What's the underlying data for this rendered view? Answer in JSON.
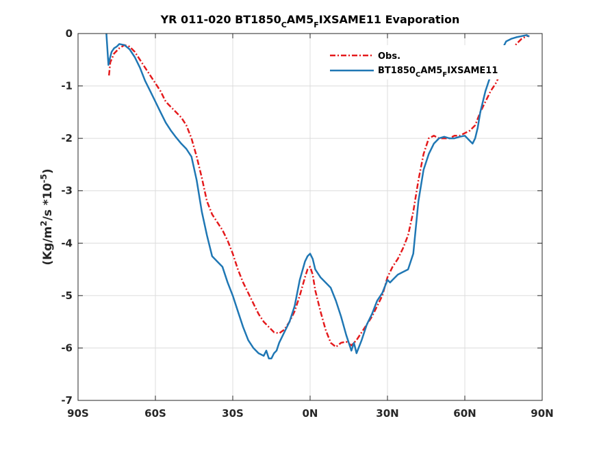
{
  "chart_data": {
    "type": "line",
    "title": {
      "pre": "YR 011-020 BT1850",
      "sub1": "C",
      "mid": "AM5",
      "sub2": "F",
      "post": "IXSAME11 Evaporation"
    },
    "xlabel": "",
    "ylabel": {
      "pre": "(Kg/m",
      "sup1": "2",
      "mid": "/s *10",
      "sup2": "-5",
      "post": ")"
    },
    "xlim": [
      -90,
      90
    ],
    "ylim": [
      -7,
      0
    ],
    "xticks": [
      -90,
      -60,
      -30,
      0,
      30,
      60,
      90
    ],
    "xtick_labels": [
      "90S",
      "60S",
      "30S",
      "0N",
      "30N",
      "60N",
      "90N"
    ],
    "yticks": [
      -7,
      -6,
      -5,
      -4,
      -3,
      -2,
      -1,
      0
    ],
    "ytick_labels": [
      "-7",
      "-6",
      "-5",
      "-4",
      "-3",
      "-2",
      "-1",
      "0"
    ],
    "grid": true,
    "legend_position": "top-right",
    "series": [
      {
        "name": "Obs.",
        "color": "#e41a1c",
        "style": "dashdot",
        "x": [
          -78,
          -77.5,
          -76,
          -74,
          -72,
          -70,
          -68,
          -66,
          -64,
          -62,
          -60,
          -58,
          -56,
          -54,
          -52,
          -50,
          -48,
          -46,
          -44,
          -42,
          -40,
          -38,
          -36,
          -34,
          -32,
          -30,
          -28,
          -26,
          -24,
          -22,
          -20,
          -18,
          -16,
          -14,
          -12,
          -10,
          -8,
          -6,
          -4,
          -2,
          -1,
          0,
          1,
          2,
          4,
          6,
          8,
          10,
          12,
          14,
          16,
          18,
          20,
          22,
          24,
          26,
          28,
          30,
          32,
          34,
          36,
          38,
          40,
          42,
          44,
          46,
          48,
          50,
          52,
          54,
          56,
          58,
          60,
          62,
          64,
          66,
          68,
          70,
          72,
          74,
          76,
          78,
          80,
          82,
          84,
          85
        ],
        "y": [
          -0.8,
          -0.55,
          -0.38,
          -0.28,
          -0.22,
          -0.25,
          -0.35,
          -0.5,
          -0.65,
          -0.8,
          -0.95,
          -1.1,
          -1.3,
          -1.4,
          -1.5,
          -1.6,
          -1.75,
          -2.0,
          -2.35,
          -2.75,
          -3.2,
          -3.45,
          -3.6,
          -3.75,
          -3.95,
          -4.2,
          -4.5,
          -4.75,
          -4.95,
          -5.15,
          -5.35,
          -5.5,
          -5.6,
          -5.7,
          -5.72,
          -5.65,
          -5.5,
          -5.3,
          -5.0,
          -4.65,
          -4.5,
          -4.45,
          -4.6,
          -4.9,
          -5.3,
          -5.65,
          -5.9,
          -5.98,
          -5.9,
          -5.88,
          -5.95,
          -5.85,
          -5.7,
          -5.55,
          -5.4,
          -5.2,
          -5.0,
          -4.65,
          -4.45,
          -4.3,
          -4.1,
          -3.85,
          -3.4,
          -2.8,
          -2.3,
          -2.0,
          -1.95,
          -2.0,
          -2.0,
          -2.0,
          -1.95,
          -1.95,
          -1.9,
          -1.85,
          -1.75,
          -1.5,
          -1.3,
          -1.1,
          -0.95,
          -0.75,
          -0.55,
          -0.35,
          -0.2,
          -0.1,
          -0.05,
          -0.05
        ]
      },
      {
        "name": "BT1850_CAM5_FIXSAME11",
        "color": "#1f77b4",
        "style": "solid",
        "x": [
          -79,
          -78.6,
          -78.2,
          -77.8,
          -77,
          -76,
          -75,
          -74,
          -72,
          -70,
          -68,
          -66,
          -64,
          -62,
          -60,
          -58,
          -56,
          -54,
          -52,
          -50,
          -48,
          -46,
          -44,
          -42,
          -40,
          -38,
          -36,
          -34,
          -32,
          -30,
          -28,
          -26,
          -24,
          -22,
          -20,
          -18,
          -17,
          -16,
          -15,
          -14,
          -13,
          -12,
          -10,
          -8,
          -6,
          -4,
          -2,
          -1,
          0,
          1,
          2,
          4,
          6,
          8,
          10,
          12,
          14,
          15,
          16,
          17,
          18,
          20,
          22,
          24,
          26,
          28,
          30,
          31,
          32,
          34,
          36,
          38,
          40,
          42,
          44,
          46,
          48,
          50,
          52,
          54,
          56,
          58,
          60,
          62,
          63,
          64,
          65,
          66,
          68,
          70,
          72,
          74,
          76,
          78,
          80,
          82,
          84,
          85
        ],
        "y": [
          0.0,
          -0.3,
          -0.6,
          -0.5,
          -0.35,
          -0.28,
          -0.25,
          -0.2,
          -0.22,
          -0.3,
          -0.45,
          -0.65,
          -0.9,
          -1.1,
          -1.3,
          -1.5,
          -1.7,
          -1.85,
          -1.98,
          -2.1,
          -2.2,
          -2.35,
          -2.8,
          -3.4,
          -3.85,
          -4.25,
          -4.35,
          -4.45,
          -4.75,
          -5.0,
          -5.3,
          -5.6,
          -5.85,
          -6.0,
          -6.1,
          -6.15,
          -6.05,
          -6.2,
          -6.2,
          -6.1,
          -6.05,
          -5.9,
          -5.7,
          -5.5,
          -5.2,
          -4.7,
          -4.35,
          -4.25,
          -4.2,
          -4.3,
          -4.5,
          -4.65,
          -4.75,
          -4.85,
          -5.1,
          -5.4,
          -5.75,
          -5.9,
          -6.05,
          -5.9,
          -6.1,
          -5.85,
          -5.55,
          -5.35,
          -5.1,
          -4.95,
          -4.7,
          -4.75,
          -4.7,
          -4.6,
          -4.55,
          -4.5,
          -4.2,
          -3.2,
          -2.6,
          -2.3,
          -2.1,
          -2.0,
          -1.97,
          -2.0,
          -2.0,
          -1.97,
          -1.95,
          -2.05,
          -2.1,
          -2.0,
          -1.8,
          -1.5,
          -1.1,
          -0.8,
          -0.55,
          -0.35,
          -0.15,
          -0.1,
          -0.07,
          -0.05,
          -0.03,
          -0.06
        ]
      }
    ]
  }
}
